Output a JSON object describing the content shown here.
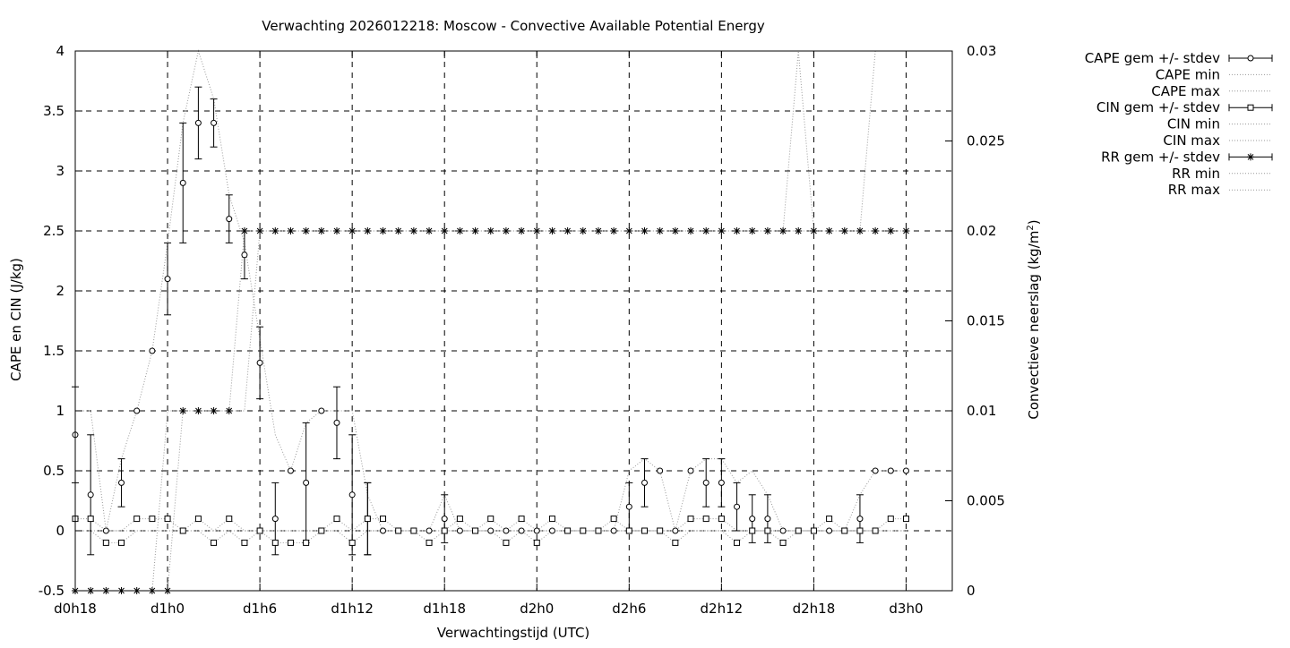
{
  "chart_data": {
    "type": "line",
    "title": "Verwachting 2026012218: Moscow - Convective Available Potential Energy",
    "xlabel": "Verwachtingstijd (UTC)",
    "ylabel": "CAPE en CIN (J/kg)",
    "y2label_main": "Convectieve neerslag (kg/m",
    "y2label_sup": "2",
    "y2label_end": ")",
    "xlim": [
      0,
      57
    ],
    "ylim": [
      -0.5,
      4
    ],
    "y2lim": [
      0,
      0.03
    ],
    "grid": true,
    "legend_position": "top-right outside",
    "x_ticks": [
      {
        "x": 0,
        "label": "d0h18"
      },
      {
        "x": 6,
        "label": "d1h0"
      },
      {
        "x": 12,
        "label": "d1h6"
      },
      {
        "x": 18,
        "label": "d1h12"
      },
      {
        "x": 24,
        "label": "d1h18"
      },
      {
        "x": 30,
        "label": "d2h0"
      },
      {
        "x": 36,
        "label": "d2h6"
      },
      {
        "x": 42,
        "label": "d2h12"
      },
      {
        "x": 48,
        "label": "d2h18"
      },
      {
        "x": 54,
        "label": "d3h0"
      }
    ],
    "y_ticks": [
      {
        "v": -0.5,
        "label": "-0.5"
      },
      {
        "v": 0,
        "label": "0"
      },
      {
        "v": 0.5,
        "label": "0.5"
      },
      {
        "v": 1,
        "label": "1"
      },
      {
        "v": 1.5,
        "label": "1.5"
      },
      {
        "v": 2,
        "label": "2"
      },
      {
        "v": 2.5,
        "label": "2.5"
      },
      {
        "v": 3,
        "label": "3"
      },
      {
        "v": 3.5,
        "label": "3.5"
      },
      {
        "v": 4,
        "label": "4"
      }
    ],
    "y2_ticks": [
      {
        "v": 0,
        "label": "0"
      },
      {
        "v": 0.005,
        "label": "0.005"
      },
      {
        "v": 0.01,
        "label": "0.01"
      },
      {
        "v": 0.015,
        "label": "0.015"
      },
      {
        "v": 0.02,
        "label": "0.02"
      },
      {
        "v": 0.025,
        "label": "0.025"
      },
      {
        "v": 0.03,
        "label": "0.03"
      }
    ],
    "series": [
      {
        "name": "CAPE gem +/- stdev",
        "marker": "circle",
        "axis": "y1",
        "x": [
          0,
          1,
          2,
          3,
          4,
          5,
          6,
          7,
          8,
          9,
          10,
          11,
          12,
          13,
          14,
          15,
          16,
          17,
          18,
          19,
          20,
          21,
          22,
          23,
          24,
          25,
          26,
          27,
          28,
          29,
          30,
          31,
          32,
          33,
          34,
          35,
          36,
          37,
          38,
          39,
          40,
          41,
          42,
          43,
          44,
          45,
          46,
          47,
          48,
          49,
          50,
          51,
          52,
          53,
          54
        ],
        "values": [
          0.8,
          0.3,
          0,
          0.4,
          1,
          1.5,
          2.1,
          2.9,
          3.4,
          3.4,
          2.6,
          2.3,
          1.4,
          0.1,
          0.5,
          0.4,
          1,
          0.9,
          0.3,
          0.1,
          0,
          0,
          0,
          0,
          0.1,
          0,
          0,
          0,
          0,
          0,
          0,
          0,
          0,
          0,
          0,
          0,
          0.2,
          0.4,
          0.5,
          0,
          0.5,
          0.4,
          0.4,
          0.2,
          0.1,
          0.1,
          0,
          0,
          0,
          0,
          0,
          0.1,
          0.5,
          0.5,
          0.5
        ],
        "stdev": [
          0.4,
          0.5,
          0,
          0.2,
          0,
          0,
          0.3,
          0.5,
          0.3,
          0.2,
          0.2,
          0.2,
          0.3,
          0.3,
          0,
          0.5,
          0,
          0.3,
          0.5,
          0.3,
          0,
          0,
          0,
          0,
          0.2,
          0,
          0,
          0,
          0,
          0,
          0,
          0,
          0,
          0,
          0,
          0,
          0.2,
          0.2,
          0,
          0,
          0,
          0.2,
          0.2,
          0.2,
          0.2,
          0.2,
          0,
          0,
          0,
          0,
          0,
          0.2,
          0,
          0,
          0
        ]
      },
      {
        "name": "CAPE min",
        "marker": "none",
        "axis": "y1",
        "x": [
          0,
          1,
          2,
          3,
          4,
          5,
          6,
          7,
          8,
          9,
          10,
          11,
          12,
          13,
          14,
          15,
          16,
          17,
          18,
          19,
          20,
          21,
          22,
          23,
          24,
          25,
          26,
          27,
          28,
          29,
          30,
          31,
          32,
          33,
          34,
          35,
          36,
          37,
          38,
          39,
          40,
          41,
          42,
          43,
          44,
          45,
          46,
          47,
          48,
          49,
          50,
          51,
          52,
          53,
          54
        ],
        "values": [
          0,
          0,
          0,
          0,
          0,
          0,
          0,
          0,
          0,
          0,
          0,
          0,
          0,
          0,
          0,
          0,
          0,
          0,
          0,
          0,
          0,
          0,
          0,
          0,
          0,
          0,
          0,
          0,
          0,
          0,
          0,
          0,
          0,
          0,
          0,
          0,
          0,
          0,
          0,
          0,
          0,
          0,
          0,
          0,
          0,
          0,
          0,
          0,
          0,
          0,
          0,
          0,
          0,
          0,
          0
        ]
      },
      {
        "name": "CAPE max",
        "marker": "none",
        "axis": "y1",
        "x": [
          0,
          1,
          2,
          3,
          4,
          5,
          6,
          7,
          8,
          9,
          10,
          11,
          12,
          13,
          14,
          15,
          16,
          17,
          18,
          19,
          20,
          21,
          22,
          23,
          24,
          25,
          26,
          27,
          28,
          29,
          30,
          31,
          32,
          33,
          34,
          35,
          36,
          37,
          38,
          39,
          40,
          41,
          42,
          43,
          44,
          45,
          46,
          47,
          48,
          49,
          50,
          51,
          52,
          53,
          54
        ],
        "values": [
          1,
          1,
          0,
          0.6,
          1,
          1.5,
          2.4,
          3.4,
          4,
          3.6,
          2.8,
          2.4,
          1.6,
          0.8,
          0.5,
          0.9,
          1,
          1,
          1,
          0.3,
          0,
          0,
          0,
          0,
          0.3,
          0,
          0,
          0,
          0,
          0,
          0,
          0,
          0,
          0,
          0,
          0,
          0.5,
          0.6,
          0.5,
          0,
          0.5,
          0.6,
          0.6,
          0.4,
          0.5,
          0.3,
          0,
          0,
          0,
          0,
          0,
          0.3,
          0.5,
          0.5,
          0.5
        ]
      },
      {
        "name": "CIN gem +/- stdev",
        "marker": "square",
        "axis": "y1",
        "x": [
          0,
          1,
          2,
          3,
          4,
          5,
          6,
          7,
          8,
          9,
          10,
          11,
          12,
          13,
          14,
          15,
          16,
          17,
          18,
          19,
          20,
          21,
          22,
          23,
          24,
          25,
          26,
          27,
          28,
          29,
          30,
          31,
          32,
          33,
          34,
          35,
          36,
          37,
          38,
          39,
          40,
          41,
          42,
          43,
          44,
          45,
          46,
          47,
          48,
          49,
          50,
          51,
          52,
          53,
          54
        ],
        "values": [
          0.1,
          0.1,
          -0.1,
          -0.1,
          0.1,
          0.1,
          0.1,
          0,
          0.1,
          -0.1,
          0.1,
          -0.1,
          0,
          -0.1,
          -0.1,
          -0.1,
          0,
          0.1,
          -0.1,
          0.1,
          0.1,
          0,
          0,
          -0.1,
          0,
          0.1,
          0,
          0.1,
          -0.1,
          0.1,
          -0.1,
          0.1,
          0,
          0,
          0,
          0.1,
          0,
          0,
          0,
          -0.1,
          0.1,
          0.1,
          0.1,
          -0.1,
          0,
          0,
          -0.1,
          0,
          0,
          0.1,
          0,
          0,
          0,
          0.1,
          0.1
        ],
        "stdev": [
          0,
          0,
          0,
          0,
          0,
          0,
          0,
          0,
          0,
          0,
          0,
          0,
          0,
          0,
          0,
          0,
          0,
          0,
          0,
          0.3,
          0,
          0,
          0,
          0,
          0,
          0,
          0,
          0,
          0,
          0,
          0,
          0,
          0,
          0,
          0,
          0,
          0,
          0,
          0,
          0,
          0,
          0,
          0,
          0,
          0,
          0,
          0,
          0,
          0,
          0,
          0,
          0,
          0,
          0,
          0
        ]
      },
      {
        "name": "CIN min",
        "marker": "none",
        "axis": "y1",
        "x": [
          0,
          1,
          2,
          3,
          4,
          5,
          6,
          7,
          8,
          9,
          10,
          11,
          12,
          13,
          14,
          15,
          16,
          17,
          18,
          19,
          20,
          21,
          22,
          23,
          24,
          25,
          26,
          27,
          28,
          29,
          30,
          31,
          32,
          33,
          34,
          35,
          36,
          37,
          38,
          39,
          40,
          41,
          42,
          43,
          44,
          45,
          46,
          47,
          48,
          49,
          50,
          51,
          52,
          53,
          54
        ],
        "values": [
          0,
          0,
          -0.1,
          -0.1,
          0,
          0,
          0,
          0,
          0,
          -0.1,
          0,
          -0.1,
          0,
          -0.1,
          -0.1,
          -0.1,
          0,
          0,
          -0.1,
          0,
          0,
          0,
          0,
          -0.1,
          0,
          0,
          0,
          0,
          -0.1,
          0,
          -0.1,
          0,
          0,
          0,
          0,
          0,
          0,
          0,
          0,
          -0.1,
          0,
          0,
          0,
          -0.1,
          0,
          0,
          -0.1,
          0,
          0,
          0,
          0,
          0,
          0,
          0,
          0
        ]
      },
      {
        "name": "CIN max",
        "marker": "none",
        "axis": "y1",
        "x": [
          0,
          1,
          2,
          3,
          4,
          5,
          6,
          7,
          8,
          9,
          10,
          11,
          12,
          13,
          14,
          15,
          16,
          17,
          18,
          19,
          20,
          21,
          22,
          23,
          24,
          25,
          26,
          27,
          28,
          29,
          30,
          31,
          32,
          33,
          34,
          35,
          36,
          37,
          38,
          39,
          40,
          41,
          42,
          43,
          44,
          45,
          46,
          47,
          48,
          49,
          50,
          51,
          52,
          53,
          54
        ],
        "values": [
          0.1,
          0.1,
          0,
          0,
          0.1,
          0.1,
          0.1,
          0,
          0.1,
          0,
          0.1,
          0,
          0,
          0,
          0,
          0,
          0,
          0.1,
          0,
          0.1,
          0.1,
          0,
          0,
          0,
          0,
          0.1,
          0,
          0.1,
          0,
          0.1,
          0,
          0.1,
          0,
          0,
          0,
          0.1,
          0,
          0,
          0,
          0,
          0.1,
          0.1,
          0.1,
          0,
          0,
          0,
          0,
          0,
          0,
          0.1,
          0,
          0,
          0,
          0.1,
          0.1
        ]
      },
      {
        "name": "RR gem +/- stdev",
        "marker": "star",
        "axis": "y2",
        "x": [
          0,
          1,
          2,
          3,
          4,
          5,
          6,
          7,
          8,
          9,
          10,
          11,
          12,
          13,
          14,
          15,
          16,
          17,
          18,
          19,
          20,
          21,
          22,
          23,
          24,
          25,
          26,
          27,
          28,
          29,
          30,
          31,
          32,
          33,
          34,
          35,
          36,
          37,
          38,
          39,
          40,
          41,
          42,
          43,
          44,
          45,
          46,
          47,
          48,
          49,
          50,
          51,
          52,
          53,
          54
        ],
        "values": [
          0,
          0,
          0,
          0,
          0,
          0,
          0,
          0.01,
          0.01,
          0.01,
          0.01,
          0.02,
          0.02,
          0.02,
          0.02,
          0.02,
          0.02,
          0.02,
          0.02,
          0.02,
          0.02,
          0.02,
          0.02,
          0.02,
          0.02,
          0.02,
          0.02,
          0.02,
          0.02,
          0.02,
          0.02,
          0.02,
          0.02,
          0.02,
          0.02,
          0.02,
          0.02,
          0.02,
          0.02,
          0.02,
          0.02,
          0.02,
          0.02,
          0.02,
          0.02,
          0.02,
          0.02,
          0.02,
          0.02,
          0.02,
          0.02,
          0.02,
          0.02,
          0.02,
          0.02
        ]
      },
      {
        "name": "RR min",
        "marker": "none",
        "axis": "y2",
        "x": [
          0,
          1,
          2,
          3,
          4,
          5,
          6,
          7,
          8,
          9,
          10,
          11,
          12,
          13,
          14,
          15,
          16,
          17,
          18,
          19,
          20,
          21,
          22,
          23,
          24,
          25,
          26,
          27,
          28,
          29,
          30,
          31,
          32,
          33,
          34,
          35,
          36,
          37,
          38,
          39,
          40,
          41,
          42,
          43,
          44,
          45,
          46,
          47,
          48,
          49,
          50,
          51,
          52,
          53,
          54
        ],
        "values": [
          0,
          0,
          0,
          0,
          0,
          0,
          0,
          0.01,
          0.01,
          0.01,
          0.01,
          0.01,
          0.02,
          0.02,
          0.02,
          0.02,
          0.02,
          0.02,
          0.02,
          0.02,
          0.02,
          0.02,
          0.02,
          0.02,
          0.02,
          0.02,
          0.02,
          0.02,
          0.02,
          0.02,
          0.02,
          0.02,
          0.02,
          0.02,
          0.02,
          0.02,
          0.02,
          0.02,
          0.02,
          0.02,
          0.02,
          0.02,
          0.02,
          0.02,
          0.02,
          0.02,
          0.02,
          0.02,
          0.02,
          0.02,
          0.02,
          0.02,
          0.02,
          0.02,
          0.02
        ]
      },
      {
        "name": "RR max",
        "marker": "none",
        "axis": "y2",
        "x": [
          0,
          1,
          2,
          3,
          4,
          5,
          6,
          7,
          8,
          9,
          10,
          11,
          12,
          13,
          14,
          15,
          16,
          17,
          18,
          19,
          20,
          21,
          22,
          23,
          24,
          25,
          26,
          27,
          28,
          29,
          30,
          31,
          32,
          33,
          34,
          35,
          36,
          37,
          38,
          39,
          40,
          41,
          42,
          43,
          44,
          45,
          46,
          47,
          48,
          49,
          50,
          51,
          52,
          53,
          54
        ],
        "values": [
          0,
          0,
          0,
          0,
          0,
          0,
          0.01,
          0.01,
          0.01,
          0.01,
          0.01,
          0.02,
          0.02,
          0.02,
          0.02,
          0.02,
          0.02,
          0.02,
          0.02,
          0.02,
          0.02,
          0.02,
          0.02,
          0.02,
          0.02,
          0.02,
          0.02,
          0.02,
          0.02,
          0.02,
          0.02,
          0.02,
          0.02,
          0.02,
          0.02,
          0.02,
          0.02,
          0.02,
          0.02,
          0.02,
          0.02,
          0.02,
          0.02,
          0.02,
          0.02,
          0.02,
          0.02,
          0.03,
          0.02,
          0.02,
          0.02,
          0.02,
          0.03,
          0.03,
          0.03
        ]
      }
    ]
  }
}
